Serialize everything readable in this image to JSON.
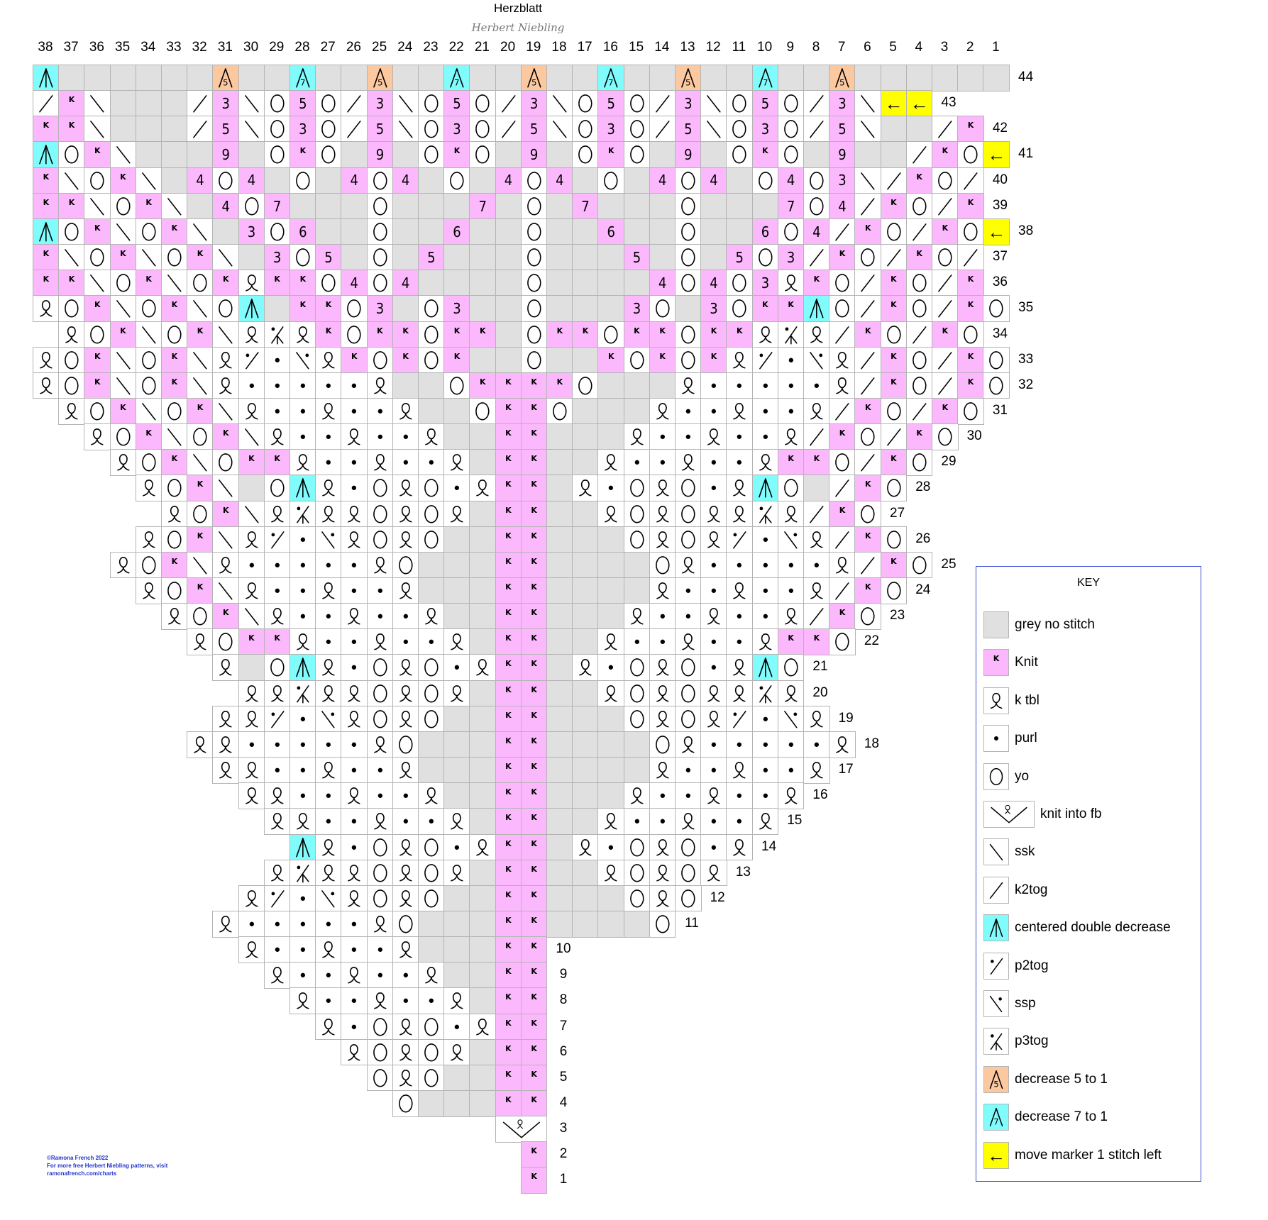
{
  "header": {
    "title": "Herzblatt",
    "author": "Herbert Niebling"
  },
  "columns": [
    38,
    37,
    36,
    35,
    34,
    33,
    32,
    31,
    30,
    29,
    28,
    27,
    26,
    25,
    24,
    23,
    22,
    21,
    20,
    19,
    18,
    17,
    16,
    15,
    14,
    13,
    12,
    11,
    10,
    9,
    8,
    7,
    6,
    5,
    4,
    3,
    2,
    1
  ],
  "colors": {
    "knit": "#fcb8fc",
    "cdd": "#80fcfc",
    "dec5": "#fcc8a0",
    "marker": "#ffff00",
    "grey": "#e0e0e0",
    "key_border": "#3b4bd0"
  },
  "symbol_codes": {
    "g": "grey no stitch",
    "k": "Knit",
    "q": "k tbl",
    "p": "purl",
    "o": "yo",
    "F": "knit into fb",
    "s": "ssk",
    "z": "k2tog",
    "A": "centered double decrease",
    "t": "p2tog",
    "u": "ssp",
    "x": "p3tog",
    "D5": "decrease 5 to 1",
    "D7": "decrease 7 to 1",
    "M": "move marker 1 stitch left",
    ".": "no cell",
    "-": "merged",
    "digit": "pink cell with number"
  },
  "chart_rows": [
    {
      "row": "44",
      "cells": "A g g g g g g D5 g g D7 g g D5 g g D7 g g D5 g g D7 g g D5 g g D7 g g D5 g g g g g g"
    },
    {
      "row": "43",
      "cells": "z k s g g g z 3 s o 5 o z 3 s o 5 o z 3 s o 5 o z 3 s o 5 o z 3 s M M . . ."
    },
    {
      "row": "42",
      "cells": "k k s g g g z 5 s o 3 o z 5 s o 3 o z 5 s o 3 o z 5 s o 3 o z 5 s g g z k ."
    },
    {
      "row": "41",
      "cells": "A o k s g g g 9 g o k o g 9 g o k o g 9 g o k o g 9 g o k o g 9 g g z k o M"
    },
    {
      "row": "40",
      "cells": "k s o k s g 4 o 4 g o g 4 o 4 g o g 4 o 4 g o g 4 o 4 g o 4 o 3 s z k o z ."
    },
    {
      "row": "39",
      "cells": "k k s o k s g 4 o 7 g g g o g g g 7 g o g 7 g g g o g g g 7 o 4 z k o z k ."
    },
    {
      "row": "38",
      "cells": "A o k s o k s g 3 o 6 g g o g g 6 g g o g g 6 g g o g g 6 o 4 z k o z k o M"
    },
    {
      "row": "37",
      "cells": "k s o k s o k s g 3 o 5 g o g 5 g g g o g g g 5 g o g 5 o 3 z k o z k o z ."
    },
    {
      "row": "36",
      "cells": "k k s o k s o k q k k o 4 o 4 g g g g o g g g g 4 o 4 o 3 q k o z k o z k ."
    },
    {
      "row": "35",
      "cells": "q o k s o k s o A g k k o 3 g o 3 g g o g g g 3 o g 3 o k k A o z k o z k o"
    },
    {
      "row": "34",
      "cells": ". q o k s o k s q x q k o k k o k k g o k k o k k o k k q x q z k o z k o ."
    },
    {
      "row": "33",
      "cells": "q o k s o k s q t p u q k o k o k g g o g g k o k o k q t p u q z k o z k o"
    },
    {
      "row": "32",
      "cells": "q o k s o k s q p p p p p q g g o k k k k o g g g q p p p p p q z k o z k o"
    },
    {
      "row": "31",
      "cells": ". q o k s o k s q p p q p p q g g o k k o g g g q p p q p p q z k o z k o ."
    },
    {
      "row": "30",
      "cells": ". . q o k s o k s q p p q p p q g g k k g g g q p p q p p q z k o z k o . ."
    },
    {
      "row": "29",
      "cells": ". . . q o k s o k k q p p q p p q g k k g g q p p q p p q k k o z k o . . ."
    },
    {
      "row": "28",
      "cells": ". . . . q o k s g o A q p o q o p q k k g q p o q o p q A o g z k o . . . ."
    },
    {
      "row": "27",
      "cells": ". . . . . q o k s q x q q o q o q g k k g g q o q o q q x q z k o . . . . ."
    },
    {
      "row": "26",
      "cells": ". . . . q o k s q t p u q o q o g g k k g g g o q o q t p u q z k o . . . ."
    },
    {
      "row": "25",
      "cells": ". . . q o k s q p p p p p q o g g g k k g g g g o q p p p p p q z k o . . ."
    },
    {
      "row": "24",
      "cells": ". . . . q o k s q p p q p p q g g g k k g g g g q p p q p p q z k o . . . ."
    },
    {
      "row": "23",
      "cells": ". . . . . q o k s q p p q p p q g g k k g g g q p p q p p q z k o . . . . ."
    },
    {
      "row": "22",
      "cells": ". . . . . . q o k k q p p q p p q g k k g g q p p q p p q k k o . . . . . ."
    },
    {
      "row": "21",
      "cells": ". . . . . . . q g o A q p o q o p q k k g q p o q o p q A o . . . . . . . ."
    },
    {
      "row": "20",
      "cells": ". . . . . . . . q q x q q o q o q g k k g g q o q o q q x q . . . . . . . ."
    },
    {
      "row": "19",
      "cells": ". . . . . . . q q t p u q o q o g g k k g g g o q o q t p u q . . . . . . ."
    },
    {
      "row": "18",
      "cells": ". . . . . . q q p p p p p q o g g g k k g g g g o q p p p p p q . . . . . ."
    },
    {
      "row": "17",
      "cells": ". . . . . . . q q p p q p p q g g g k k g g g g q p p q p p q . . . . . . ."
    },
    {
      "row": "16",
      "cells": ". . . . . . . . q q p p q p p q g g k k g g g q p p q p p q . . . . . . . ."
    },
    {
      "row": "15",
      "cells": ". . . . . . . . . q q p p q p p q g k k g g q p p q p p q . . . . . . . . ."
    },
    {
      "row": "14",
      "cells": ". . . . . . . . . . A q p o q o p q k k g q p o q o p q . . . . . . . . . ."
    },
    {
      "row": "13",
      "cells": ". . . . . . . . . q x q q o q o q g k k g g q o q o q . . . . . . . . . . ."
    },
    {
      "row": "12",
      "cells": ". . . . . . . . q t p u q o q o g g k k g g g o q o . . . . . . . . . . . ."
    },
    {
      "row": "11",
      "cells": ". . . . . . . q p p p p p q o g g g k k g g g g o . . . . . . . . . . . . ."
    },
    {
      "row": "10",
      "cells": ". . . . . . . . q p p q p p q g g g k k . . . . . . . . . . . . . . . . . ."
    },
    {
      "row": "9",
      "cells": ". . . . . . . . . q p p q p p q g g k k . . . . . . . . . . . . . . . . . ."
    },
    {
      "row": "8",
      "cells": ". . . . . . . . . . q p p q p p q g k k . . . . . . . . . . . . . . . . . ."
    },
    {
      "row": "7",
      "cells": ". . . . . . . . . . . q p o q o p q k k . . . . . . . . . . . . . . . . . ."
    },
    {
      "row": "6",
      "cells": ". . . . . . . . . . . . q o q o q g k k . . . . . . . . . . . . . . . . . ."
    },
    {
      "row": "5",
      "cells": ". . . . . . . . . . . . . o q o g g k k . . . . . . . . . . . . . . . . . ."
    },
    {
      "row": "4",
      "cells": ". . . . . . . . . . . . . . o g g g k k . . . . . . . . . . . . . . . . . ."
    },
    {
      "row": "3",
      "cells": ". . . . . . . . . . . . . . . . . . F - . . . . . . . . . . . . . . . . . ."
    },
    {
      "row": "2",
      "cells": ". . . . . . . . . . . . . . . . . . . k . . . . . . . . . . . . . . . . . ."
    },
    {
      "row": "1",
      "cells": ". . . . . . . . . . . . . . . . . . . k . . . . . . . . . . . . . . . . . ."
    }
  ],
  "key": {
    "title": "KEY",
    "items": [
      {
        "symbol": "g",
        "label": "grey no stitch"
      },
      {
        "symbol": "k",
        "label": "Knit"
      },
      {
        "symbol": "q",
        "label": "k tbl"
      },
      {
        "symbol": "p",
        "label": "purl"
      },
      {
        "symbol": "o",
        "label": "yo"
      },
      {
        "symbol": "F",
        "label": "knit into fb"
      },
      {
        "symbol": "s",
        "label": "ssk"
      },
      {
        "symbol": "z",
        "label": "k2tog"
      },
      {
        "symbol": "A",
        "label": "centered double decrease"
      },
      {
        "symbol": "t",
        "label": "p2tog"
      },
      {
        "symbol": "u",
        "label": "ssp"
      },
      {
        "symbol": "x",
        "label": "p3tog"
      },
      {
        "symbol": "D5",
        "label": "decrease 5 to 1"
      },
      {
        "symbol": "D7",
        "label": "decrease 7 to 1"
      },
      {
        "symbol": "M",
        "label": "move marker 1 stitch left"
      }
    ]
  },
  "footer": {
    "copyright": "©Ramona French 2022",
    "line2": "For more free Herbert Niebling patterns, visit",
    "link": "ramonafrench.com/charts"
  }
}
